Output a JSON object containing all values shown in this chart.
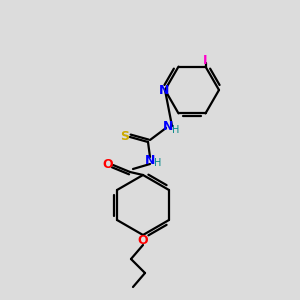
{
  "background_color": "#dcdcdc",
  "bond_color": "#000000",
  "atom_colors": {
    "N": "#0000ff",
    "O": "#ff0000",
    "S": "#ccaa00",
    "I": "#ff00cc",
    "H_N": "#008888",
    "H_N2": "#888888",
    "C": "#000000"
  },
  "figsize": [
    3.0,
    3.0
  ],
  "dpi": 100,
  "lw": 1.6
}
